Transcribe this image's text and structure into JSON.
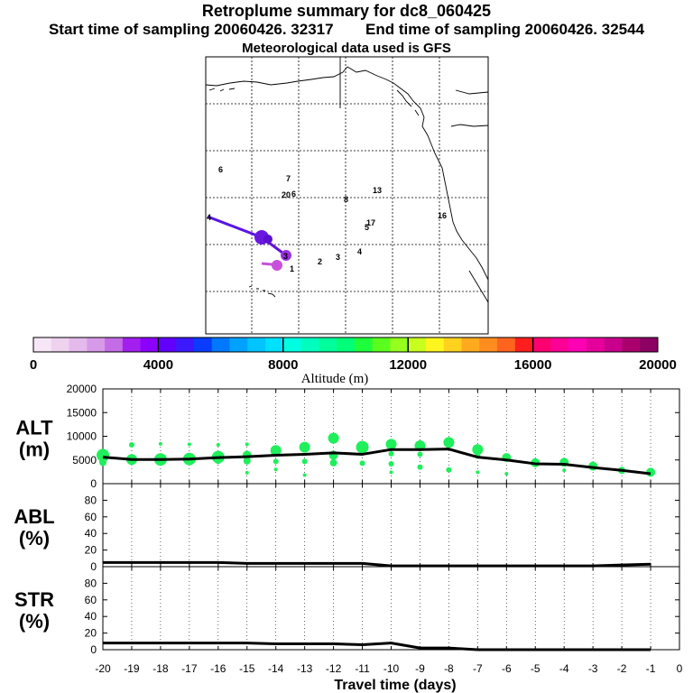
{
  "header": {
    "title": "Retroplume summary for dc8_060425",
    "start_label": "Start time of sampling 20060426. 32317",
    "end_label": "End time of sampling 20060426. 32544",
    "met_label": "Meteorological data used is GFS"
  },
  "colorbar": {
    "ticks": [
      "0",
      "4000",
      "8000",
      "12000",
      "16000",
      "20000"
    ],
    "label": "Altitude (m)",
    "colors": [
      "#f7e6f7",
      "#eed2ee",
      "#e4b9ec",
      "#d79ae8",
      "#c46be6",
      "#a21ff0",
      "#8c00ff",
      "#6200ff",
      "#3d18ff",
      "#0a3cff",
      "#0078ff",
      "#00a2ff",
      "#00c4ff",
      "#00e1ff",
      "#00ffe1",
      "#00ffbf",
      "#00ff9c",
      "#00ff78",
      "#1eff3c",
      "#5aff1e",
      "#96ff1e",
      "#c8ff1e",
      "#fff51e",
      "#ffd21e",
      "#ffaa1e",
      "#ff8c1e",
      "#ff641e",
      "#ff1e1e",
      "#ff0070",
      "#ff0096",
      "#ff00b4",
      "#e6009b",
      "#c8008c",
      "#aa006e",
      "#8c0064"
    ]
  },
  "map": {
    "day_labels": [
      {
        "label": "1",
        "color": "#6a00b0"
      },
      {
        "label": "2",
        "color": "#6a00b0"
      },
      {
        "label": "3",
        "color": "#6a00b0"
      },
      {
        "label": "4",
        "color": "#6a00b0"
      },
      {
        "label": "5",
        "color": "#6a00b0"
      },
      {
        "label": "6",
        "color": "#6a00b0"
      },
      {
        "label": "7",
        "color": "#c000c0"
      },
      {
        "label": "8",
        "color": "#6a00b0"
      },
      {
        "label": "13",
        "color": "#00b0a0"
      },
      {
        "label": "16",
        "color": "#00b0a0"
      },
      {
        "label": "17",
        "color": "#00b0a0"
      },
      {
        "label": "20",
        "color": "#00b0a0"
      },
      {
        "label": "6",
        "color": "#6a00b0"
      },
      {
        "label": "4",
        "color": "#5a00ff"
      },
      {
        "label": "3",
        "color": "#6a00b0"
      }
    ]
  },
  "chart_data": [
    {
      "type": "line",
      "panel": "ALT",
      "ylabel": "ALT\n(m)",
      "ylim": [
        0,
        20000
      ],
      "yticks": [
        0,
        5000,
        10000,
        15000,
        20000
      ],
      "x": [
        -20,
        -19,
        -18,
        -17,
        -16,
        -15,
        -14,
        -13,
        -12,
        -11,
        -10,
        -9,
        -8,
        -7,
        -6,
        -5,
        -4,
        -3,
        -2,
        -1
      ],
      "median_line": [
        5600,
        5100,
        5100,
        5200,
        5500,
        5700,
        6000,
        6200,
        6500,
        6200,
        7200,
        7200,
        7300,
        5600,
        5000,
        4200,
        4100,
        3400,
        2800,
        2100
      ],
      "dots_color": "#1eef5a",
      "dots": [
        {
          "x": -20,
          "y": 6000,
          "r": 7
        },
        {
          "x": -20,
          "y": 4500,
          "r": 4
        },
        {
          "x": -19,
          "y": 8200,
          "r": 3
        },
        {
          "x": -19,
          "y": 5100,
          "r": 6
        },
        {
          "x": -18,
          "y": 8400,
          "r": 2
        },
        {
          "x": -18,
          "y": 5100,
          "r": 7
        },
        {
          "x": -17,
          "y": 8300,
          "r": 2
        },
        {
          "x": -17,
          "y": 5200,
          "r": 7
        },
        {
          "x": -16,
          "y": 8200,
          "r": 2
        },
        {
          "x": -16,
          "y": 5600,
          "r": 7
        },
        {
          "x": -16,
          "y": 4700,
          "r": 3
        },
        {
          "x": -15,
          "y": 8300,
          "r": 2
        },
        {
          "x": -15,
          "y": 6000,
          "r": 5
        },
        {
          "x": -15,
          "y": 4800,
          "r": 4
        },
        {
          "x": -15,
          "y": 2300,
          "r": 2
        },
        {
          "x": -14,
          "y": 7000,
          "r": 6
        },
        {
          "x": -14,
          "y": 4700,
          "r": 3
        },
        {
          "x": -14,
          "y": 3000,
          "r": 2
        },
        {
          "x": -13,
          "y": 7700,
          "r": 6
        },
        {
          "x": -13,
          "y": 4700,
          "r": 3
        },
        {
          "x": -13,
          "y": 1800,
          "r": 2
        },
        {
          "x": -12,
          "y": 9600,
          "r": 6
        },
        {
          "x": -12,
          "y": 6000,
          "r": 5
        },
        {
          "x": -12,
          "y": 4400,
          "r": 4
        },
        {
          "x": -11,
          "y": 7700,
          "r": 7
        },
        {
          "x": -11,
          "y": 4300,
          "r": 3
        },
        {
          "x": -10,
          "y": 8300,
          "r": 6
        },
        {
          "x": -10,
          "y": 6300,
          "r": 3
        },
        {
          "x": -10,
          "y": 4200,
          "r": 3
        },
        {
          "x": -10,
          "y": 2400,
          "r": 2
        },
        {
          "x": -9,
          "y": 8000,
          "r": 6
        },
        {
          "x": -9,
          "y": 6200,
          "r": 3
        },
        {
          "x": -9,
          "y": 3500,
          "r": 3
        },
        {
          "x": -8,
          "y": 8700,
          "r": 6
        },
        {
          "x": -8,
          "y": 2900,
          "r": 3
        },
        {
          "x": -7,
          "y": 7200,
          "r": 6
        },
        {
          "x": -7,
          "y": 5800,
          "r": 3
        },
        {
          "x": -7,
          "y": 2400,
          "r": 2
        },
        {
          "x": -6,
          "y": 5500,
          "r": 5
        },
        {
          "x": -6,
          "y": 2100,
          "r": 2
        },
        {
          "x": -5,
          "y": 4400,
          "r": 5
        },
        {
          "x": -4,
          "y": 4500,
          "r": 5
        },
        {
          "x": -4,
          "y": 2800,
          "r": 2
        },
        {
          "x": -3,
          "y": 3700,
          "r": 5
        },
        {
          "x": -2,
          "y": 2800,
          "r": 4
        },
        {
          "x": -1,
          "y": 2400,
          "r": 5
        }
      ]
    },
    {
      "type": "line",
      "panel": "ABL",
      "ylabel": "ABL\n(%)",
      "ylim": [
        0,
        100
      ],
      "yticks": [
        0,
        20,
        40,
        60,
        80
      ],
      "x": [
        -20,
        -19,
        -18,
        -17,
        -16,
        -15,
        -14,
        -13,
        -12,
        -11,
        -10,
        -9,
        -8,
        -7,
        -6,
        -5,
        -4,
        -3,
        -2,
        -1
      ],
      "values": [
        5,
        5,
        5,
        5,
        5,
        4,
        4,
        4,
        4,
        4,
        1,
        1,
        1,
        1,
        1,
        1,
        1,
        1,
        2,
        3
      ]
    },
    {
      "type": "line",
      "panel": "STR",
      "ylabel": "STR\n(%)",
      "ylim": [
        0,
        100
      ],
      "yticks": [
        0,
        20,
        40,
        60,
        80
      ],
      "xlabel": "Travel time (days)",
      "xlim": [
        -20,
        0
      ],
      "xticks": [
        -20,
        -19,
        -18,
        -17,
        -16,
        -15,
        -14,
        -13,
        -12,
        -11,
        -10,
        -9,
        -8,
        -7,
        -6,
        -5,
        -4,
        -3,
        -2,
        -1,
        0
      ],
      "x": [
        -20,
        -19,
        -18,
        -17,
        -16,
        -15,
        -14,
        -13,
        -12,
        -11,
        -10,
        -9,
        -8,
        -7,
        -6,
        -5,
        -4,
        -3,
        -2,
        -1
      ],
      "values": [
        8,
        8,
        8,
        8,
        8,
        8,
        7,
        7,
        7,
        6,
        8,
        2,
        2,
        0,
        0,
        0,
        0,
        0,
        0,
        0
      ]
    }
  ]
}
